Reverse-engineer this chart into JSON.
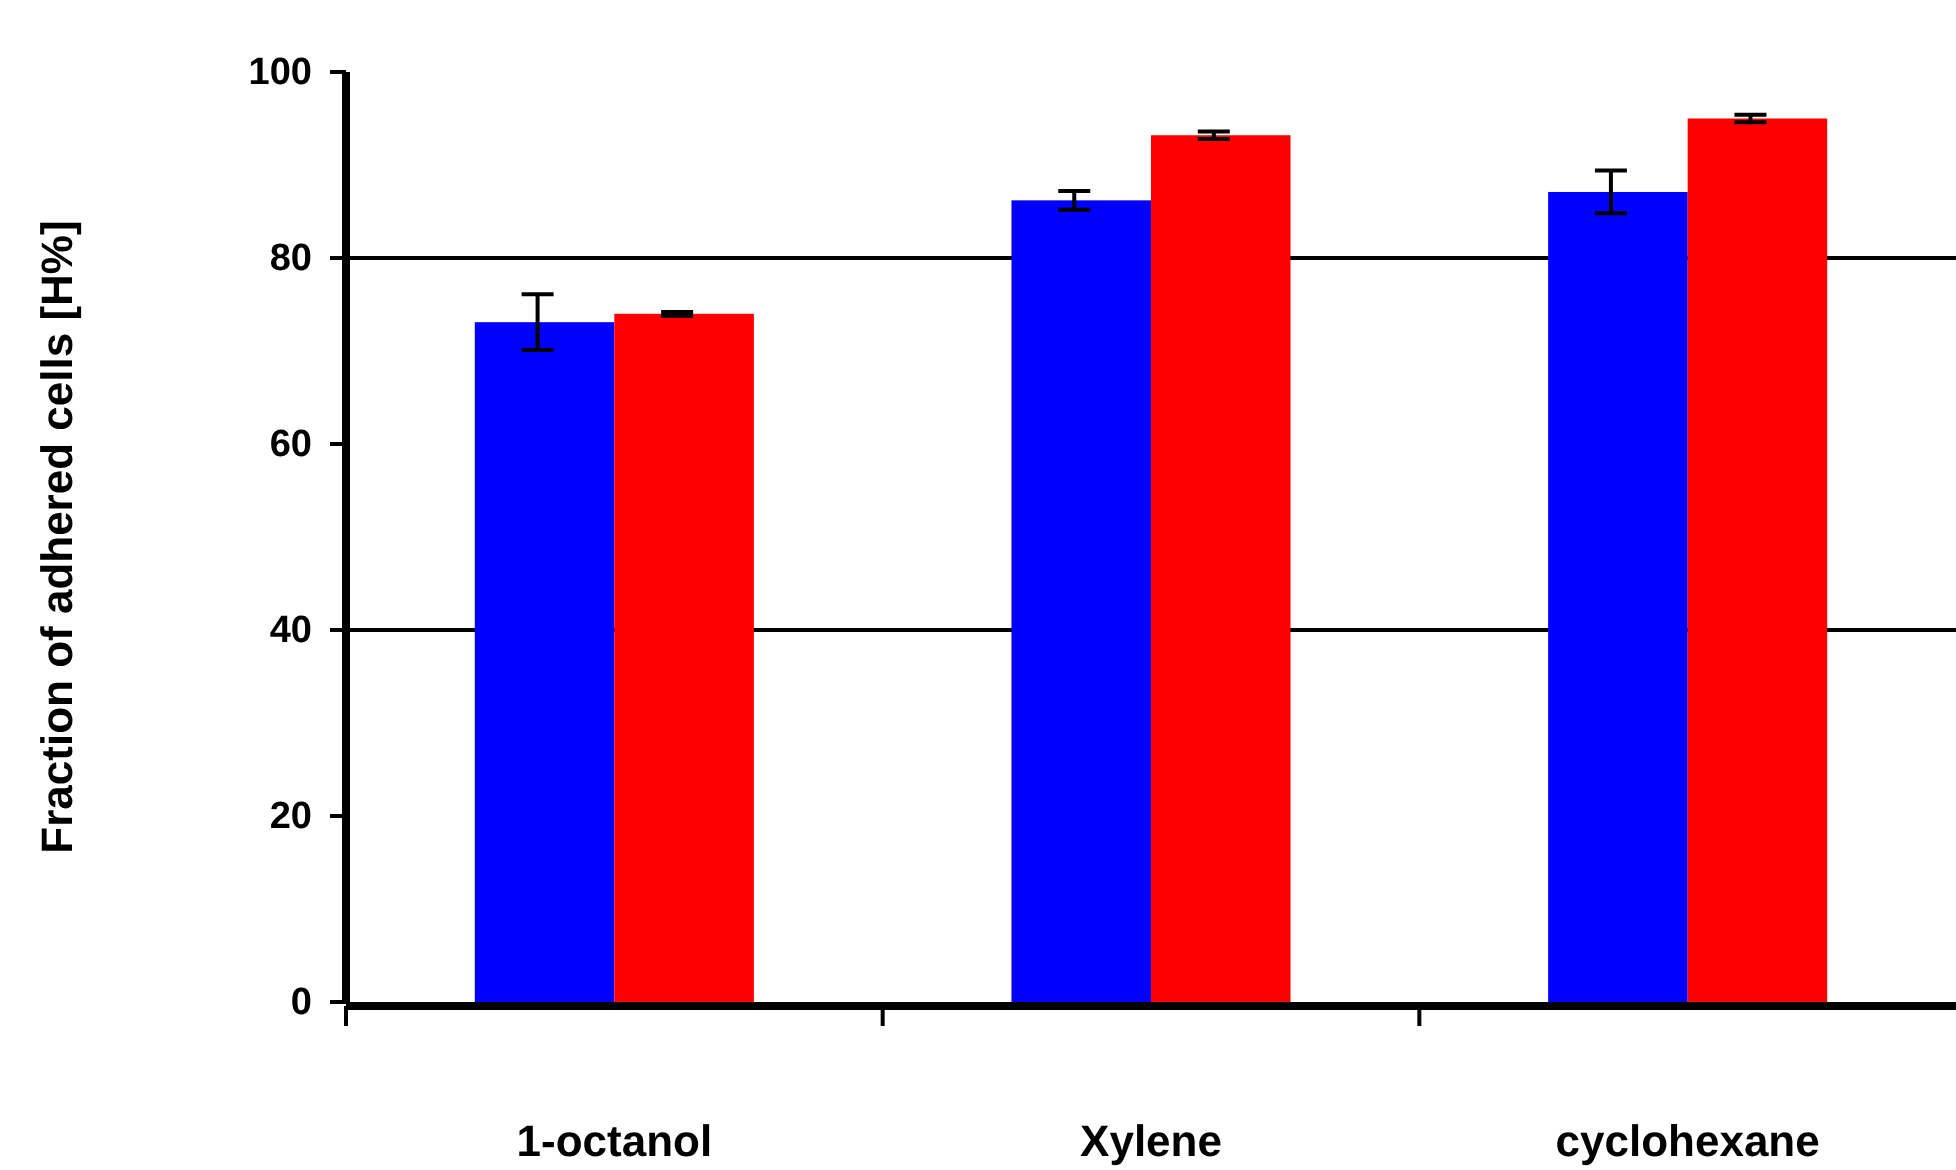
{
  "chart_data": {
    "type": "bar",
    "ylabel": "Fraction of adhered cells [H%]",
    "categories": [
      "1-octanol",
      "Xylene",
      "cyclohexane"
    ],
    "series": [
      {
        "color": "#0000ff",
        "values": [
          73.1,
          86.2,
          87.1
        ],
        "errors": [
          3,
          1,
          2.3
        ]
      },
      {
        "color": "#ff0000",
        "values": [
          74,
          93.2,
          95
        ],
        "errors": [
          0.2,
          0.4,
          0.4
        ]
      }
    ],
    "ylim": [
      0,
      100
    ],
    "yticks": [
      0,
      20,
      40,
      60,
      80,
      100
    ],
    "ref_lines": [
      {
        "axis": "y",
        "value": 40,
        "color": "#000000"
      },
      {
        "axis": "y",
        "value": 80,
        "color": "#000000"
      }
    ]
  }
}
